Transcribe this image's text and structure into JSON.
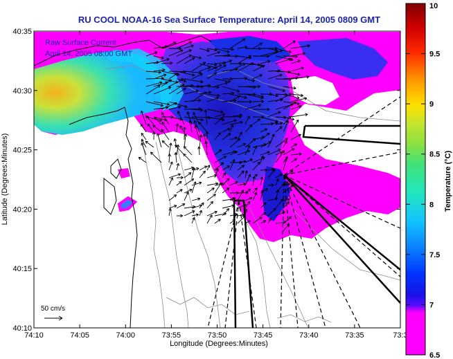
{
  "chart_data": {
    "type": "heatmap",
    "title": "RU COOL  NOAA-16  Sea Surface Temperature:  April 14, 2005 0809 GMT",
    "xlabel": "Longitude (Degrees:Minutes)",
    "ylabel": "Latitude (Degrees:Minutes)",
    "x_ticks": [
      "74:10",
      "74:05",
      "74:00",
      "73:55",
      "73:50",
      "73:45",
      "73:40",
      "73:35",
      "73:3"
    ],
    "y_ticks": [
      "40:35",
      "40:30",
      "40:25",
      "40:20",
      "40:15",
      "40:10"
    ],
    "x_range_minutes_west": [
      10,
      30
    ],
    "y_range_minutes_north": [
      10,
      35
    ],
    "legend": [
      "Raw Surface Current",
      "April 14, 2005 08:00 GMT"
    ],
    "scale_label": "50 cm/s",
    "colorbar": {
      "label": "Temperature (°C)",
      "ticks": [
        "10",
        "9.5",
        "9",
        "8.5",
        "8",
        "7.5",
        "7",
        "6.5"
      ],
      "range": [
        6.5,
        10
      ]
    },
    "sst_patches": [
      {
        "lon": 74.148,
        "lat": 40.505,
        "temp": 8.9
      },
      {
        "lon": 74.1,
        "lat": 40.5,
        "temp": 8.6
      },
      {
        "lon": 74.05,
        "lat": 40.52,
        "temp": 8.2
      },
      {
        "lon": 74.0,
        "lat": 40.545,
        "temp": 7.8
      },
      {
        "lon": 73.95,
        "lat": 40.5,
        "temp": 7.2
      },
      {
        "lon": 73.88,
        "lat": 40.5,
        "temp": 6.9
      },
      {
        "lon": 73.82,
        "lat": 40.45,
        "temp": 6.9
      },
      {
        "lon": 73.7,
        "lat": 40.52,
        "temp": 6.6
      },
      {
        "lon": 73.6,
        "lat": 40.48,
        "temp": 6.6
      },
      {
        "lon": 73.72,
        "lat": 40.35,
        "temp": 6.6
      },
      {
        "lon": 73.98,
        "lat": 40.32,
        "temp": 6.8
      }
    ],
    "buoys": [
      {
        "lon": 73.978,
        "lat": 40.245
      },
      {
        "lon": 73.92,
        "lat": 40.23
      }
    ],
    "colors": {
      "title": "#1d23a8",
      "scale_min": "#ff00ff",
      "scale_mid": "#0000ff",
      "scale_max": "#800000"
    }
  }
}
